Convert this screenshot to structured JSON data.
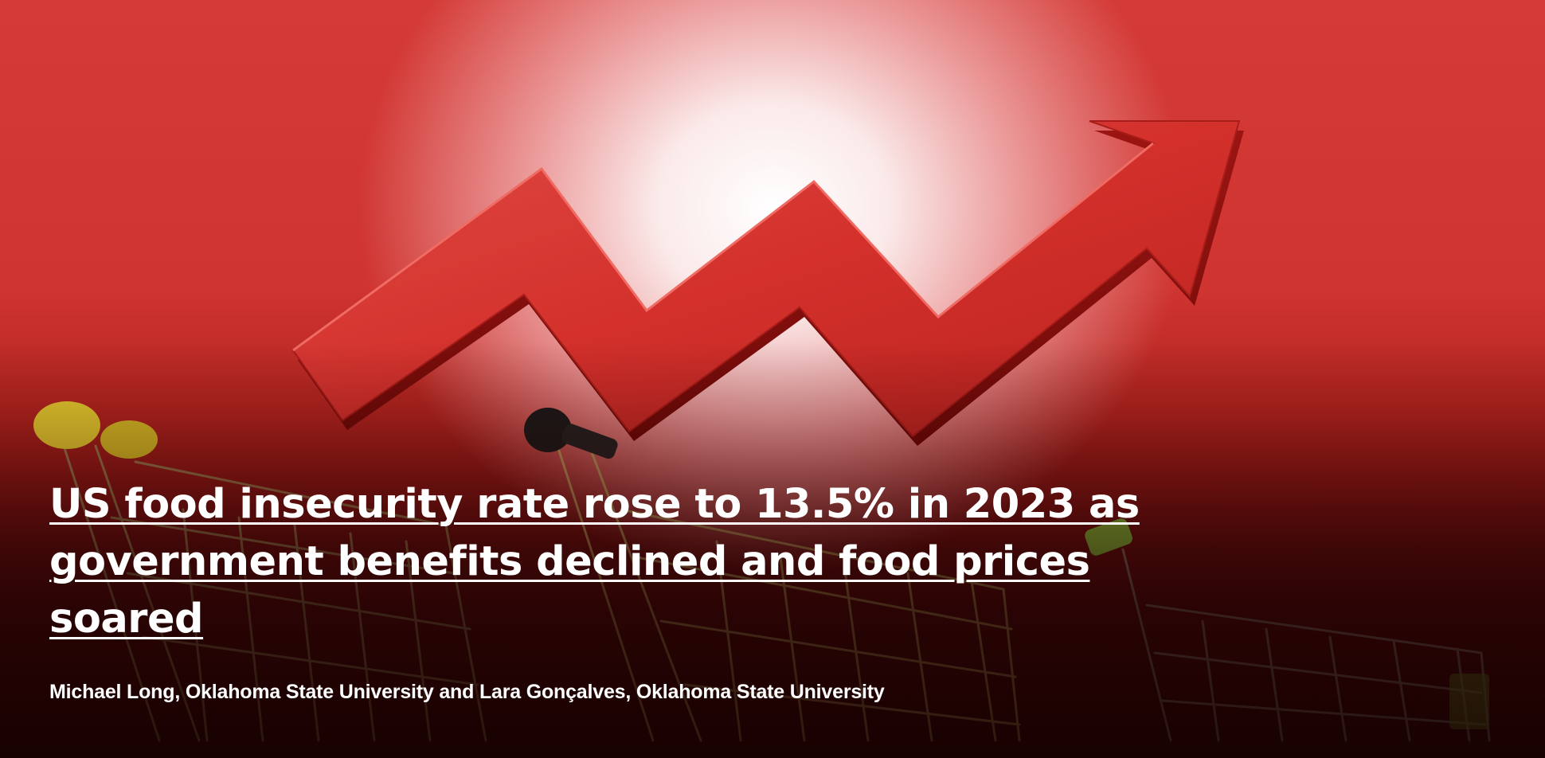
{
  "article": {
    "headline": "US food insecurity rate rose to 13.5% in 2023 as government benefits declined and food prices soared",
    "byline": "Michael Long, Oklahoma State University and Lara Gonçalves, Oklahoma State University"
  },
  "image": {
    "arrow_color": "#d42f2b",
    "background_color": "#cf3430",
    "cart_handle_colors": [
      "#e8d030",
      "#1a1a1a",
      "#8cc83c"
    ]
  }
}
